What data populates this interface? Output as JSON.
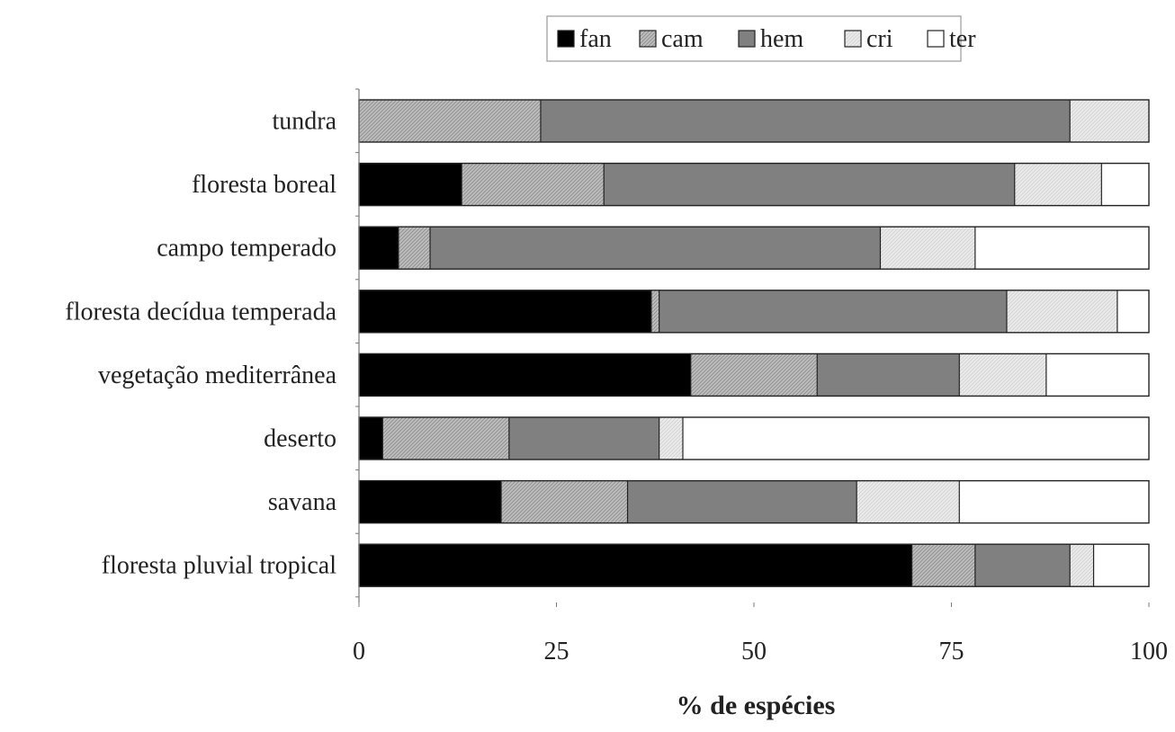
{
  "chart_data": {
    "type": "bar",
    "orientation": "horizontal",
    "stacked": true,
    "title": "",
    "xlabel": "% de espécies",
    "ylabel": "",
    "xlim": [
      0,
      100
    ],
    "x_ticks": [
      "0",
      "25",
      "50",
      "75",
      "100"
    ],
    "x_tick_values": [
      0,
      25,
      50,
      75,
      100
    ],
    "grid": false,
    "legend_position": "top-center",
    "categories": [
      "tundra",
      "floresta boreal",
      "campo temperado",
      "floresta decídua temperada",
      "vegetação mediterrânea",
      "deserto",
      "savana",
      "floresta pluvial tropical"
    ],
    "series": [
      {
        "name": "fan",
        "color": "#000000",
        "pattern": "solid",
        "values": [
          0,
          13,
          5,
          37,
          42,
          3,
          18,
          70
        ]
      },
      {
        "name": "cam",
        "color": "#b4b4b4",
        "pattern": "hatched",
        "values": [
          23,
          18,
          4,
          1,
          16,
          16,
          16,
          8
        ]
      },
      {
        "name": "hem",
        "color": "#808080",
        "pattern": "solid",
        "values": [
          67,
          52,
          57,
          44,
          18,
          19,
          29,
          12
        ]
      },
      {
        "name": "cri",
        "color": "#e6e6e6",
        "pattern": "hatched",
        "values": [
          10,
          11,
          12,
          14,
          11,
          3,
          13,
          3
        ]
      },
      {
        "name": "ter",
        "color": "#ffffff",
        "pattern": "solid",
        "values": [
          0,
          6,
          22,
          4,
          13,
          59,
          24,
          7
        ]
      }
    ]
  }
}
